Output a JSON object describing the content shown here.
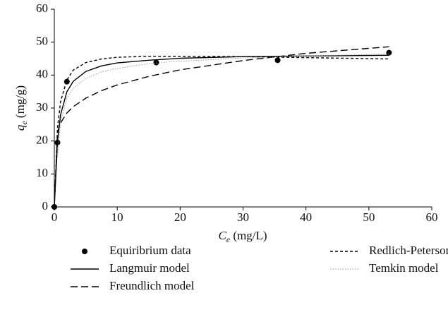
{
  "chart_data": {
    "type": "line",
    "xlabel": [
      "C",
      "e",
      " (mg/L)"
    ],
    "ylabel": [
      "q",
      "e",
      " (mg/g)"
    ],
    "xlim": [
      0,
      60
    ],
    "xticks": [
      0,
      10,
      20,
      30,
      40,
      50,
      60
    ],
    "ylim": [
      0,
      60
    ],
    "yticks": [
      0,
      10,
      20,
      30,
      40,
      50,
      60
    ],
    "series": [
      {
        "name": "Equiribrium data",
        "type": "scatter",
        "color": "#000000",
        "x": [
          0,
          0.5,
          2,
          16.2,
          35.5,
          53.2
        ],
        "values": [
          0,
          19.5,
          38,
          43.8,
          44.5,
          46.8
        ]
      },
      {
        "name": "Langmuir model",
        "line_style": "solid",
        "color": "#000000",
        "x": [
          0,
          0.5,
          1,
          2,
          3,
          5,
          7.5,
          10,
          15,
          20,
          30,
          40,
          53.2
        ],
        "values": [
          0,
          20.0,
          28.0,
          34.95,
          38.1,
          41.1,
          42.8,
          43.7,
          44.5,
          45.1,
          45.6,
          45.8,
          46.0
        ]
      },
      {
        "name": "Freundlich model",
        "line_style": "long-dash",
        "color": "#000000",
        "x": [
          0,
          0.5,
          1,
          2,
          3,
          5,
          7.5,
          10,
          15,
          20,
          30,
          40,
          53.2
        ],
        "values": [
          0,
          22.8,
          25.5,
          28.5,
          30.4,
          33.0,
          35.3,
          37.0,
          39.6,
          41.6,
          44.4,
          46.6,
          48.6
        ]
      },
      {
        "name": "Redlich-Peterson model",
        "line_style": "short-dash",
        "color": "#000000",
        "x": [
          0,
          0.5,
          1,
          2,
          3,
          5,
          7.5,
          10,
          15,
          20,
          30,
          40,
          53.2
        ],
        "values": [
          0,
          24,
          32,
          38.5,
          41.5,
          43.8,
          44.9,
          45.4,
          45.7,
          45.7,
          45.6,
          45.3,
          44.9
        ]
      },
      {
        "name": "Temkin model",
        "line_style": "dotted",
        "color": "#9a9a9a",
        "x": [
          0.5,
          1,
          2,
          3,
          5,
          7.5,
          10,
          15,
          20,
          30,
          40,
          53.2
        ],
        "values": [
          15,
          26,
          33,
          36,
          39,
          41,
          42,
          43.5,
          44.2,
          45.2,
          45.8,
          46.4
        ]
      }
    ]
  }
}
